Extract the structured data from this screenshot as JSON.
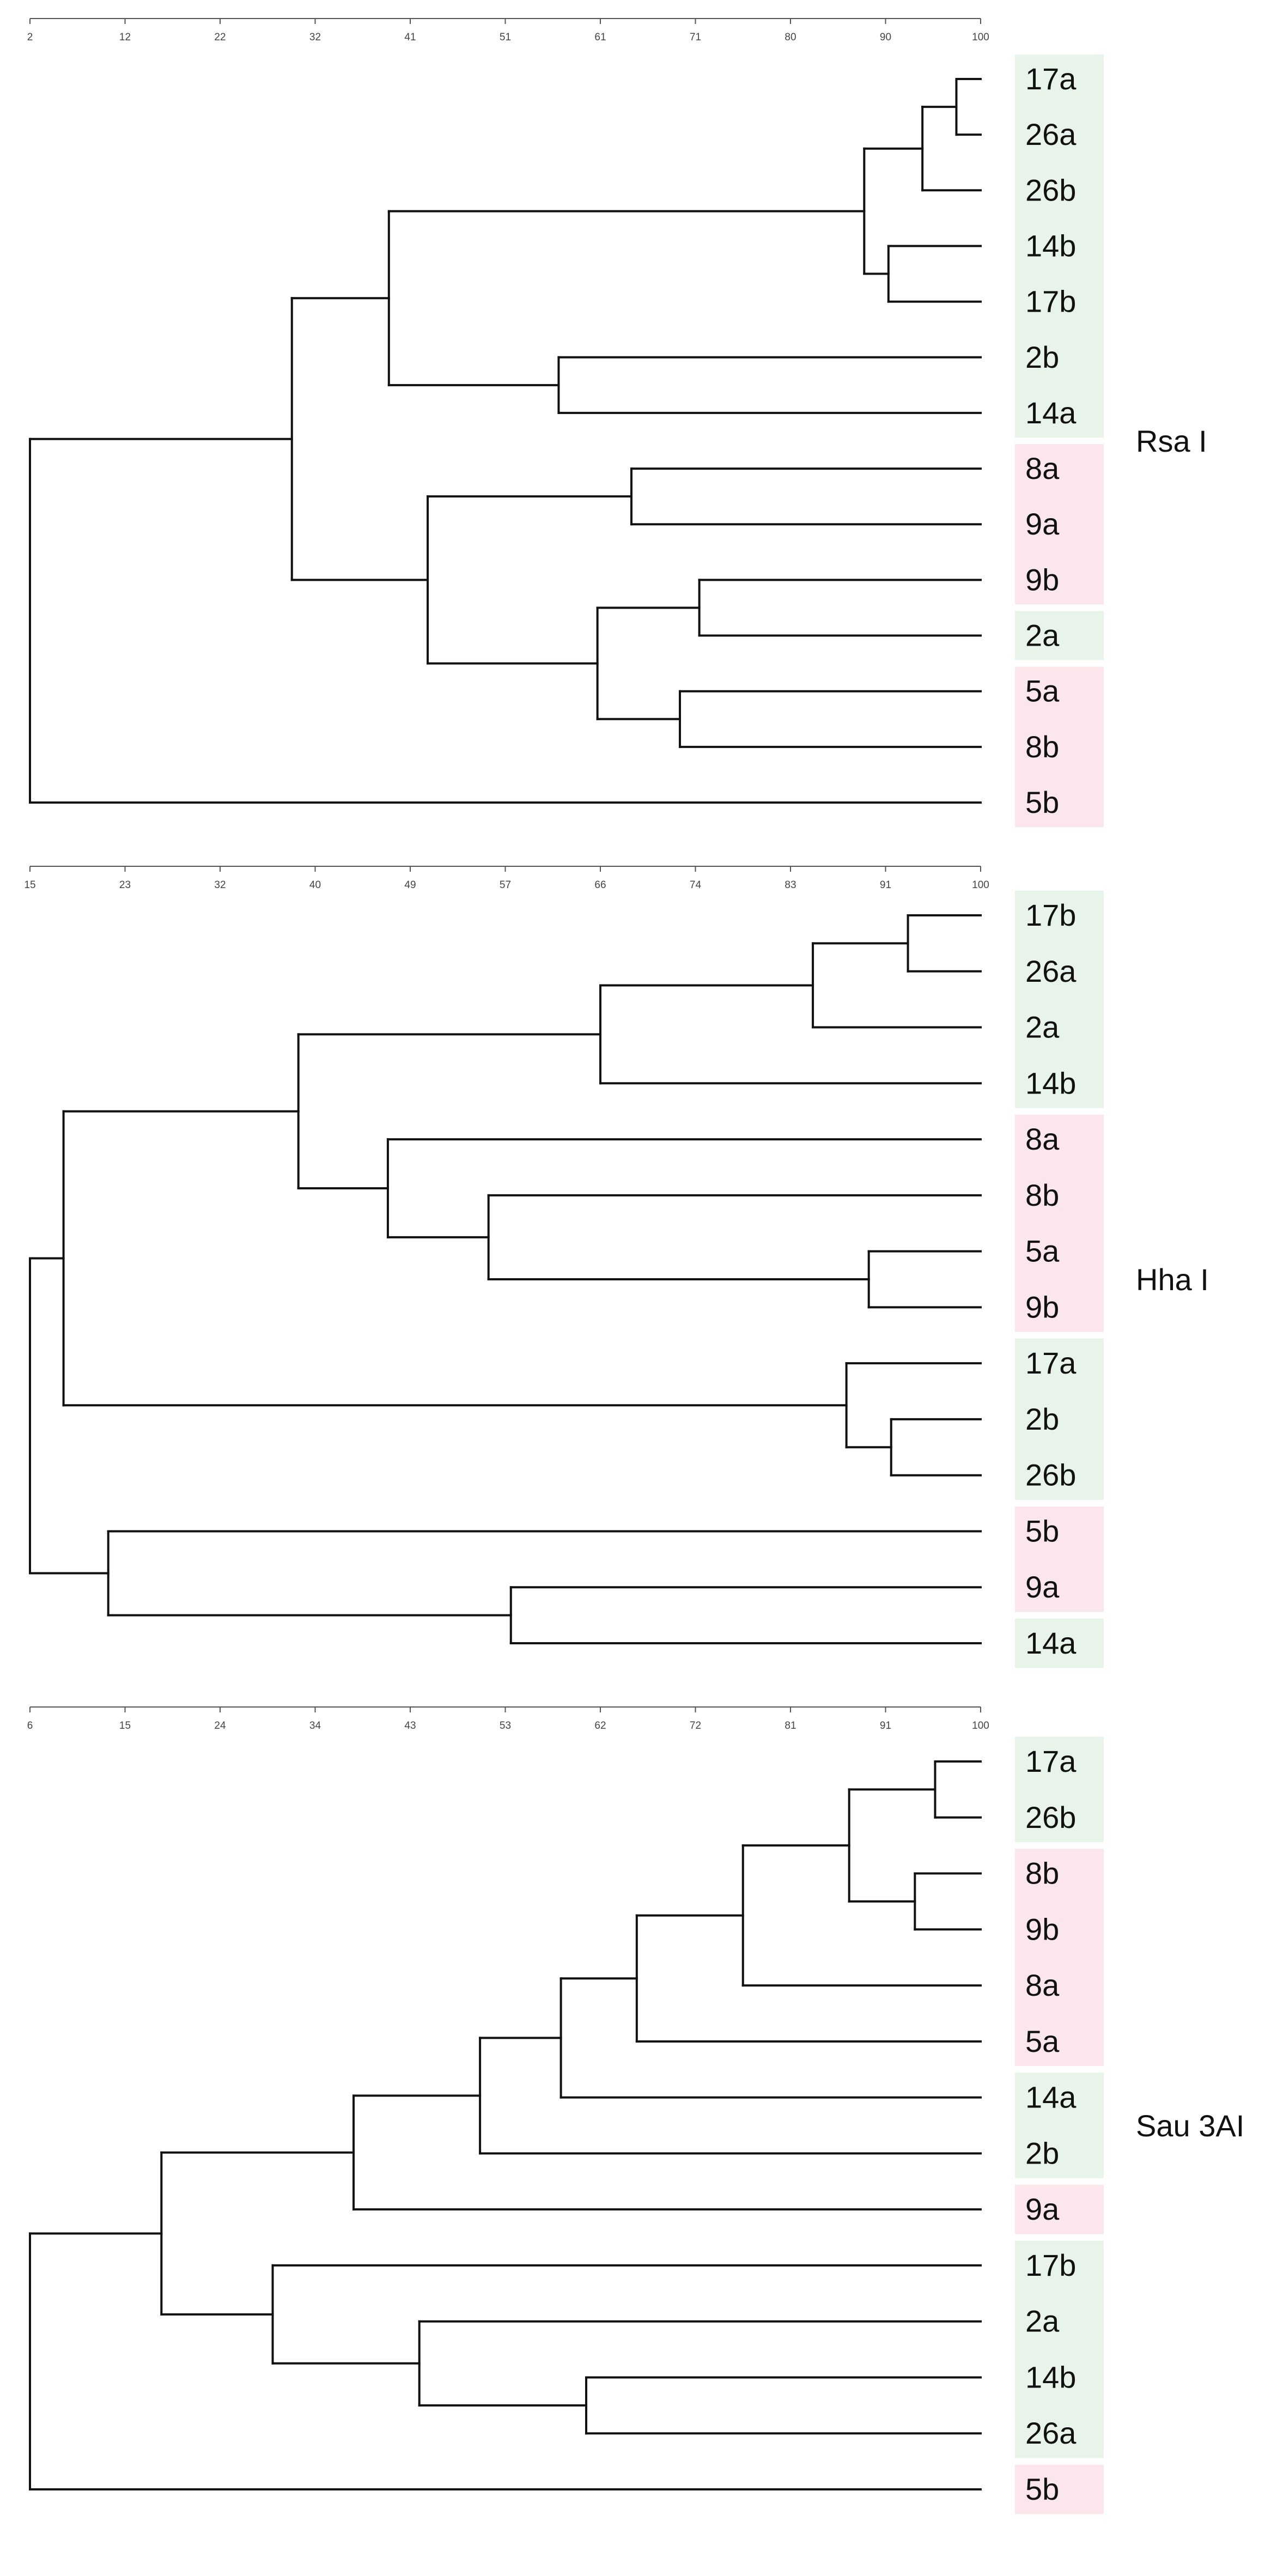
{
  "colors": {
    "group_green": "#e8f4ea",
    "group_pink": "#fbe6ec",
    "line": "#111111",
    "axis": "#555555"
  },
  "panels": [
    {
      "id": "rsa",
      "enzyme_label": "Rsa I",
      "axis_ticks": [
        "2",
        "12",
        "22",
        "32",
        "41",
        "51",
        "61",
        "71",
        "80",
        "90",
        "100"
      ],
      "leaves": [
        {
          "label": "17a",
          "group": "green"
        },
        {
          "label": "26a",
          "group": "green"
        },
        {
          "label": "26b",
          "group": "green"
        },
        {
          "label": "14b",
          "group": "green"
        },
        {
          "label": "17b",
          "group": "green"
        },
        {
          "label": "2b",
          "group": "green"
        },
        {
          "label": "14a",
          "group": "green"
        },
        {
          "label": "8a",
          "group": "pink"
        },
        {
          "label": "9a",
          "group": "pink"
        },
        {
          "label": "9b",
          "group": "pink"
        },
        {
          "label": "2a",
          "group": "green"
        },
        {
          "label": "5a",
          "group": "pink"
        },
        {
          "label": "8b",
          "group": "pink"
        },
        {
          "label": "5b",
          "group": "pink"
        }
      ],
      "tree": [
        2,
        [
          [
            29,
            [
              [
                39,
                [
                  [
                    88,
                    [
                      [
                        94,
                        [
                          [
                            97.5,
                            [
                              0,
                              1
                            ]
                          ],
                          2
                        ]
                      ],
                      [
                        90.5,
                        [
                          3,
                          4
                        ]
                      ]
                    ]
                  ],
                  [
                    56.5,
                    [
                      5,
                      6
                    ]
                  ]
                ]
              ],
              [
                43,
                [
                  [
                    64,
                    [
                      7,
                      8
                    ]
                  ],
                  [
                    60.5,
                    [
                      [
                        71,
                        [
                          9,
                          10
                        ]
                      ],
                      [
                        [
                          69,
                          [
                            11,
                            12
                          ]
                        ]
                      ]
                    ]
                  ]
                ]
              ]
            ]
          ],
          13
        ]
      ]
    },
    {
      "id": "hha",
      "enzyme_label": "Hha I",
      "axis_ticks": [
        "15",
        "23",
        "32",
        "40",
        "49",
        "57",
        "66",
        "74",
        "83",
        "91",
        "100"
      ],
      "leaves": [
        {
          "label": "17b",
          "group": "green"
        },
        {
          "label": "26a",
          "group": "green"
        },
        {
          "label": "2a",
          "group": "green"
        },
        {
          "label": "14b",
          "group": "green"
        },
        {
          "label": "8a",
          "group": "pink"
        },
        {
          "label": "8b",
          "group": "pink"
        },
        {
          "label": "5a",
          "group": "pink"
        },
        {
          "label": "9b",
          "group": "pink"
        },
        {
          "label": "17a",
          "group": "green"
        },
        {
          "label": "2b",
          "group": "green"
        },
        {
          "label": "26b",
          "group": "green"
        },
        {
          "label": "5b",
          "group": "pink"
        },
        {
          "label": "9a",
          "group": "pink"
        },
        {
          "label": "14a",
          "group": "green"
        }
      ],
      "tree": [
        15,
        [
          [
            18,
            [
              [
                39,
                [
                  [
                    66,
                    [
                      [
                        85,
                        [
                          [
                            93.5,
                            [
                              0,
                              1
                            ]
                          ],
                          2
                        ]
                      ],
                      3
                    ]
                  ],
                  [
                    47,
                    [
                      4,
                      [
                        56,
                        [
                          5,
                          [
                            90,
                            [
                              6,
                              7
                            ]
                          ]
                        ]
                      ]
                    ]
                  ]
                ]
              ],
              [
                88,
                [
                  8,
                  [
                    92,
                    [
                      9,
                      10
                    ]
                  ]
                ]
              ]
            ]
          ],
          [
            22,
            [
              11,
              [
                58,
                [
                  12,
                  13
                ]
              ]
            ]
          ]
        ]
      ]
    },
    {
      "id": "sau",
      "enzyme_label": "Sau 3AI",
      "axis_ticks": [
        "6",
        "15",
        "24",
        "34",
        "43",
        "53",
        "62",
        "72",
        "81",
        "91",
        "100"
      ],
      "leaves": [
        {
          "label": "17a",
          "group": "green"
        },
        {
          "label": "26b",
          "group": "green"
        },
        {
          "label": "8b",
          "group": "pink"
        },
        {
          "label": "9b",
          "group": "pink"
        },
        {
          "label": "8a",
          "group": "pink"
        },
        {
          "label": "5a",
          "group": "pink"
        },
        {
          "label": "14a",
          "group": "green"
        },
        {
          "label": "2b",
          "group": "green"
        },
        {
          "label": "9a",
          "group": "pink"
        },
        {
          "label": "17b",
          "group": "green"
        },
        {
          "label": "2a",
          "group": "green"
        },
        {
          "label": "14b",
          "group": "green"
        },
        {
          "label": "26a",
          "group": "green"
        },
        {
          "label": "5b",
          "group": "pink"
        }
      ],
      "tree": [
        6,
        [
          [
            19,
            [
              [
                38,
                [
                  [
                    50.5,
                    [
                      [
                        58.5,
                        [
                          [
                            66,
                            [
                              [
                                76.5,
                                [
                                  [
                                    87,
                                    [
                                      [
                                        95.5,
                                        [
                                          0,
                                          1
                                        ]
                                      ],
                                      [
                                        93.5,
                                        [
                                          2,
                                          3
                                        ]
                                      ]
                                    ]
                                  ],
                                  4
                                ]
                              ],
                              5
                            ]
                          ],
                          6
                        ]
                      ],
                      7
                    ]
                  ],
                  8
                ]
              ],
              [
                30,
                [
                  9,
                  [
                    44.5,
                    [
                      10,
                      [
                        61,
                        [
                          11,
                          12
                        ]
                      ]
                    ]
                  ]
                ]
              ]
            ]
          ],
          13
        ]
      ]
    }
  ]
}
